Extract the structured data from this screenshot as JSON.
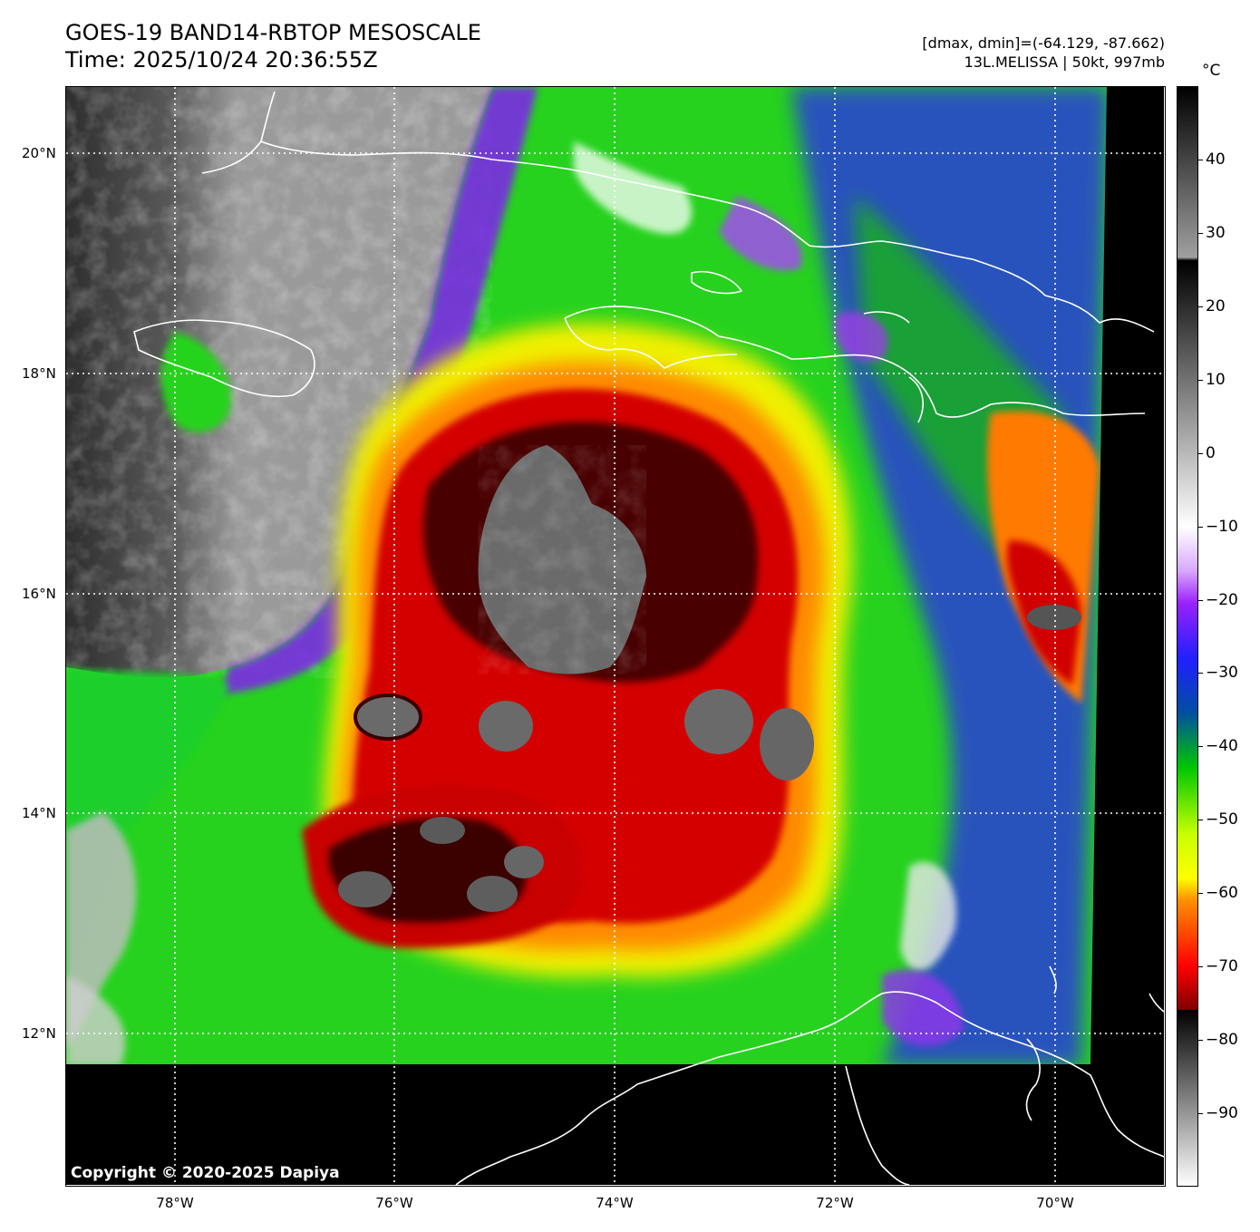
{
  "title": {
    "line1": "GOES-19 BAND14-RBTOP MESOSCALE",
    "line2": "Time: 2025/10/24 20:36:55Z"
  },
  "info": {
    "line1": "[dmax, dmin]=(-64.129, -87.662)",
    "line2": "13L.MELISSA | 50kt, 997mb"
  },
  "map": {
    "lat_labels": [
      "20°N",
      "18°N",
      "16°N",
      "14°N",
      "12°N"
    ],
    "lon_labels": [
      "78°W",
      "76°W",
      "74°W",
      "72°W",
      "70°W"
    ],
    "extent": {
      "lon_min": -79,
      "lon_max": -69,
      "lat_min": 10.6,
      "lat_max": 20.6
    },
    "grid_lats": [
      20,
      18,
      16,
      14,
      12
    ],
    "grid_lons": [
      -78,
      -76,
      -74,
      -72,
      -70
    ],
    "copyright": "Copyright © 2020-2025 Dapiya"
  },
  "colorbar": {
    "unit": "°C",
    "tick_labels": [
      "40",
      "30",
      "20",
      "10",
      "0",
      "−10",
      "−20",
      "−30",
      "−40",
      "−50",
      "−60",
      "−70",
      "−80",
      "−90"
    ],
    "tick_values": [
      40,
      30,
      20,
      10,
      0,
      -10,
      -20,
      -30,
      -40,
      -50,
      -60,
      -70,
      -80,
      -90
    ],
    "range": [
      -100,
      50
    ]
  },
  "colors": {
    "warm_gray": "#3a3a3a",
    "cold_white": "#ffffff",
    "purple": "#8a2be2",
    "blue": "#1e3cff",
    "green": "#18e418",
    "yellow": "#f2f200",
    "orange": "#ff8c00",
    "red": "#d20000",
    "dark_red": "#3c0000",
    "coastline": "#ffffff",
    "nodata": "#000000"
  }
}
